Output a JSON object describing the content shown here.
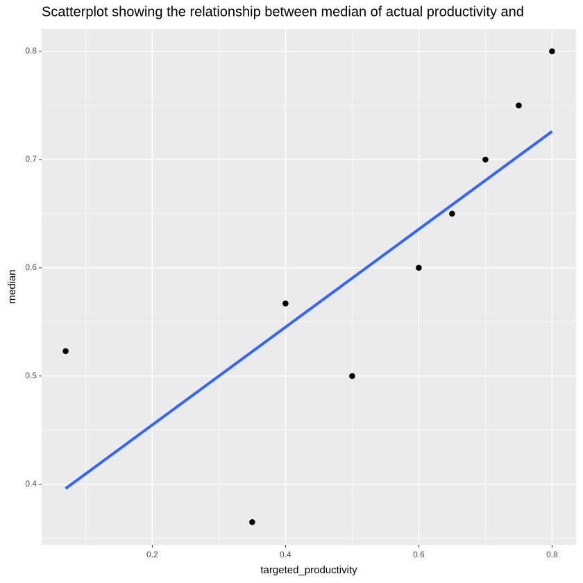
{
  "chart_data": {
    "type": "scatter",
    "title": "Scatterplot showing the relationship between median of actual productivity and",
    "x_label": "targeted_productivity",
    "y_label": "median",
    "x": [
      0.07,
      0.35,
      0.4,
      0.5,
      0.6,
      0.65,
      0.7,
      0.75,
      0.8
    ],
    "values": [
      0.523,
      0.365,
      0.567,
      0.5,
      0.6,
      0.65,
      0.7,
      0.75,
      0.8
    ],
    "color": "#000000",
    "trend": {
      "x": [
        0.07,
        0.8
      ],
      "values": [
        0.396,
        0.726
      ],
      "color": "#3366ff"
    },
    "xlim": [
      0.034,
      0.836
    ],
    "ylim": [
      0.344,
      0.8205
    ],
    "xticks": [
      0.2,
      0.4,
      0.6,
      0.8
    ],
    "yticks": [
      0.4,
      0.5,
      0.6,
      0.7,
      0.8
    ],
    "minor_xticks": [
      0.1,
      0.3,
      0.5,
      0.7
    ],
    "minor_yticks": [
      0.35,
      0.45,
      0.55,
      0.65,
      0.75
    ],
    "grid": true
  }
}
